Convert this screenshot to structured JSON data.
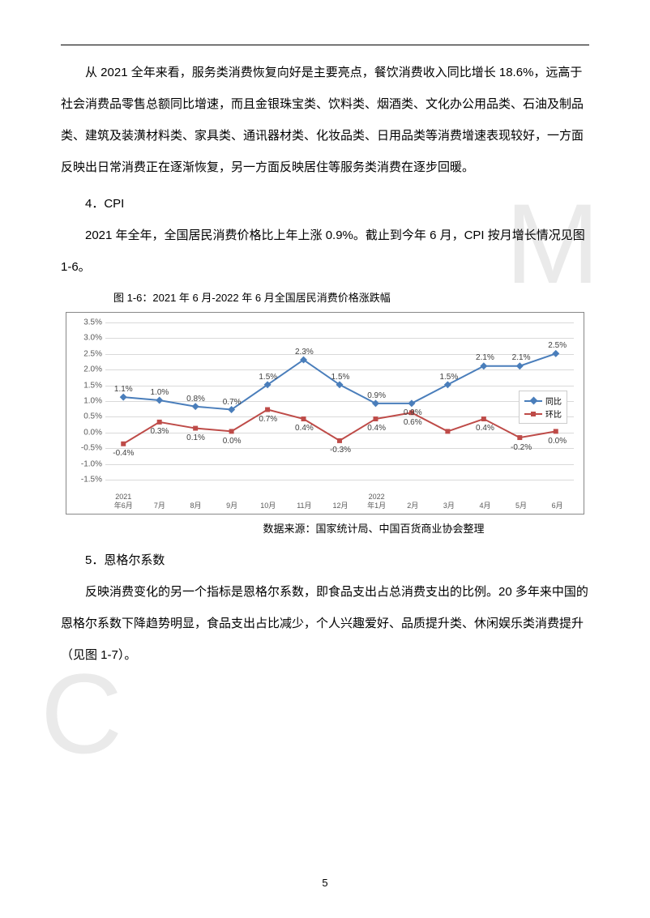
{
  "watermark1": "M",
  "watermark2": "C",
  "para1": "从 2021 全年来看，服务类消费恢复向好是主要亮点，餐饮消费收入同比增长 18.6%，远高于社会消费品零售总额同比增速，而且金银珠宝类、饮料类、烟酒类、文化办公用品类、石油及制品类、建筑及装潢材料类、家具类、通讯器材类、化妆品类、日用品类等消费增速表现较好，一方面反映出日常消费正在逐渐恢复，另一方面反映居住等服务类消费在逐步回暖。",
  "heading4": "4．CPI",
  "para2": "2021 年全年，全国居民消费价格比上年上涨 0.9%。截止到今年 6 月，CPI 按月增长情况见图 1-6。",
  "chart": {
    "title": "图 1-6：2021 年 6 月-2022 年 6 月全国居民消费价格涨跌幅",
    "source": "数据来源：国家统计局、中国百货商业协会整理",
    "type": "line",
    "ylim": [
      -1.5,
      3.5
    ],
    "ytick_step": 0.5,
    "yticks": [
      "-1.5%",
      "-1.0%",
      "-0.5%",
      "0.0%",
      "0.5%",
      "1.0%",
      "1.5%",
      "2.0%",
      "2.5%",
      "3.0%",
      "3.5%"
    ],
    "categories": [
      "2021\n年6月",
      "7月",
      "8月",
      "9月",
      "10月",
      "11月",
      "12月",
      "2022\n年1月",
      "2月",
      "3月",
      "4月",
      "5月",
      "6月"
    ],
    "series": [
      {
        "name": "同比",
        "color": "#4a7ebb",
        "marker": "diamond",
        "values": [
          1.1,
          1.0,
          0.8,
          0.7,
          1.5,
          2.3,
          1.5,
          0.9,
          0.9,
          1.5,
          2.1,
          2.1,
          2.5
        ],
        "labels": [
          "1.1%",
          "1.0%",
          "0.8%",
          "0.7%",
          "1.5%",
          "2.3%",
          "1.5%",
          "0.9%",
          "0.9%",
          "1.5%",
          "2.1%",
          "2.1%",
          "2.5%"
        ],
        "label_pos": [
          "above",
          "above",
          "above",
          "above",
          "above",
          "above",
          "above",
          "above",
          "below",
          "above",
          "above",
          "above",
          "above"
        ],
        "show_label": [
          true,
          true,
          true,
          true,
          true,
          true,
          true,
          true,
          true,
          true,
          true,
          true,
          true
        ]
      },
      {
        "name": "环比",
        "color": "#be4b48",
        "marker": "square",
        "values": [
          -0.4,
          0.3,
          0.1,
          0.0,
          0.7,
          0.4,
          -0.3,
          0.4,
          0.6,
          0.0,
          0.4,
          -0.2,
          0.0
        ],
        "labels": [
          "-0.4%",
          "0.3%",
          "0.1%",
          "0.0%",
          "0.7%",
          "0.4%",
          "-0.3%",
          "0.4%",
          "0.6%",
          "",
          "0.4%",
          "-0.2%",
          "0.0%"
        ],
        "label_pos": [
          "below",
          "below",
          "below",
          "below",
          "below",
          "below",
          "below",
          "below",
          "below",
          "below",
          "below",
          "below",
          "below"
        ],
        "show_label": [
          true,
          true,
          true,
          true,
          true,
          true,
          true,
          true,
          true,
          false,
          true,
          true,
          true
        ]
      }
    ],
    "legend": {
      "items": [
        "同比",
        "环比"
      ]
    },
    "grid_color": "#d9d9d9",
    "border_color": "#888888",
    "bg": "#ffffff",
    "label_fontsize": 10
  },
  "heading5": "5．恩格尔系数",
  "para3": "反映消费变化的另一个指标是恩格尔系数，即食品支出占总消费支出的比例。20 多年来中国的恩格尔系数下降趋势明显，食品支出占比减少，个人兴趣爱好、品质提升类、休闲娱乐类消费提升（见图 1-7）。",
  "page_number": "5"
}
